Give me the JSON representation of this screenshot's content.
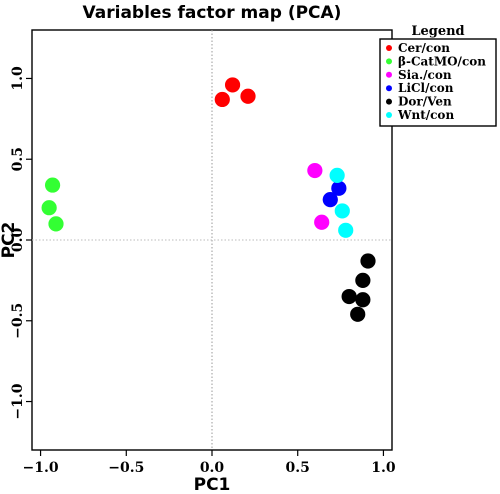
{
  "chart_data": {
    "type": "scatter",
    "title": "Variables factor map (PCA)",
    "xlabel": "PC1",
    "ylabel": "PC2",
    "xlim": [
      -1.05,
      1.05
    ],
    "ylim": [
      -1.3,
      1.3
    ],
    "xticks": [
      "−1.0",
      "−0.5",
      "0.0",
      "0.5",
      "1.0"
    ],
    "yticks": [
      "−1.0",
      "−0.5",
      "0.0",
      "0.5",
      "1.0"
    ],
    "grid": false,
    "reference_lines": {
      "x": 0,
      "y": 0
    },
    "legend_title": "Legend",
    "legend_position": "right",
    "series": [
      {
        "name": "Cer/con",
        "color": "#ff0000",
        "points": [
          [
            0.06,
            0.87
          ],
          [
            0.12,
            0.96
          ],
          [
            0.21,
            0.89
          ]
        ]
      },
      {
        "name": "β-CatMO/con",
        "color": "#33ff33",
        "points": [
          [
            -0.93,
            0.34
          ],
          [
            -0.95,
            0.2
          ],
          [
            -0.91,
            0.1
          ]
        ]
      },
      {
        "name": "Sia./con",
        "color": "#ff00ff",
        "points": [
          [
            0.6,
            0.43
          ],
          [
            0.64,
            0.11
          ]
        ]
      },
      {
        "name": "LiCl/con",
        "color": "#0000ff",
        "points": [
          [
            0.74,
            0.32
          ],
          [
            0.69,
            0.25
          ]
        ]
      },
      {
        "name": "Dor/Ven",
        "color": "#000000",
        "points": [
          [
            0.91,
            -0.13
          ],
          [
            0.88,
            -0.25
          ],
          [
            0.8,
            -0.35
          ],
          [
            0.88,
            -0.37
          ],
          [
            0.85,
            -0.46
          ]
        ]
      },
      {
        "name": "Wnt/con",
        "color": "#00ffff",
        "points": [
          [
            0.73,
            0.4
          ],
          [
            0.76,
            0.18
          ],
          [
            0.78,
            0.06
          ]
        ]
      }
    ]
  }
}
